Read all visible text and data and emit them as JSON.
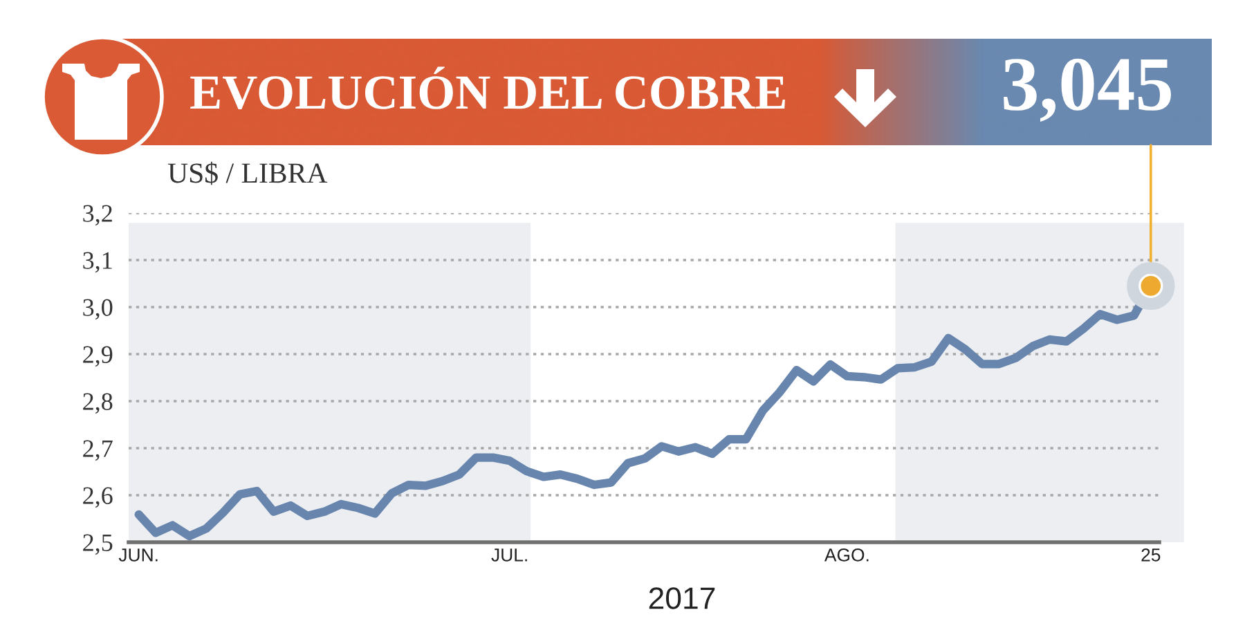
{
  "chart_data": {
    "type": "line",
    "title": "EVOLUCIÓN DEL COBRE",
    "ylabel": "US$ / LIBRA",
    "xlabel": "2017",
    "categories": [
      "JUN.",
      null,
      null,
      null,
      null,
      null,
      null,
      null,
      null,
      null,
      null,
      null,
      null,
      null,
      null,
      null,
      null,
      null,
      null,
      null,
      null,
      null,
      "JUL.",
      null,
      null,
      null,
      null,
      null,
      null,
      null,
      null,
      null,
      null,
      null,
      null,
      null,
      null,
      null,
      null,
      null,
      null,
      null,
      "AGO.",
      null,
      null,
      null,
      null,
      null,
      null,
      null,
      null,
      null,
      null,
      null,
      null,
      null,
      null,
      null,
      null,
      null,
      "25"
    ],
    "series": [
      {
        "color": "#6785ad",
        "values": [
          2.559,
          2.52,
          2.536,
          2.513,
          2.529,
          2.563,
          2.602,
          2.609,
          2.565,
          2.578,
          2.556,
          2.565,
          2.581,
          2.573,
          2.561,
          2.604,
          2.622,
          2.62,
          2.63,
          2.644,
          2.68,
          2.68,
          2.673,
          2.651,
          2.639,
          2.644,
          2.635,
          2.622,
          2.627,
          2.668,
          2.678,
          2.704,
          2.693,
          2.702,
          2.688,
          2.719,
          2.719,
          2.78,
          2.819,
          2.866,
          2.842,
          2.878,
          2.853,
          2.851,
          2.846,
          2.87,
          2.872,
          2.884,
          2.934,
          2.91,
          2.879,
          2.879,
          2.892,
          2.917,
          2.931,
          2.927,
          2.954,
          2.985,
          2.973,
          2.982,
          3.045
        ]
      }
    ],
    "ylim": [
      2.5,
      3.2
    ],
    "yticks": [
      {
        "value": 2.5,
        "label": "2,5"
      },
      {
        "value": 2.6,
        "label": "2,6"
      },
      {
        "value": 2.7,
        "label": "2,7"
      },
      {
        "value": 2.8,
        "label": "2,8"
      },
      {
        "value": 2.9,
        "label": "2,9"
      },
      {
        "value": 3.0,
        "label": "3,0"
      },
      {
        "value": 3.1,
        "label": "3,1"
      },
      {
        "value": 3.2,
        "label": "3,2"
      }
    ],
    "grid": "y",
    "line_style": "solid",
    "annotations": [
      {
        "text": "3,045",
        "x": "25",
        "y": 3.045
      }
    ]
  }
}
